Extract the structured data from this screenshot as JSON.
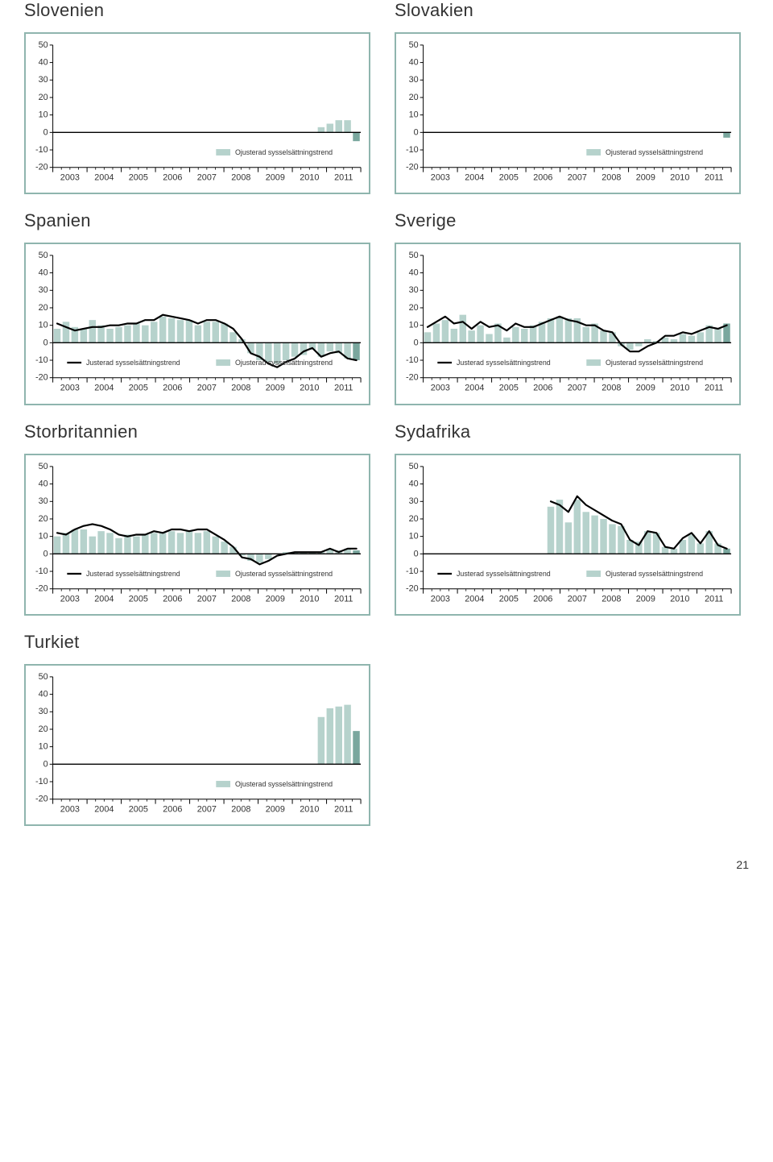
{
  "page_number": "21",
  "ylim": [
    -20,
    50
  ],
  "yticks": [
    -20,
    -10,
    0,
    10,
    20,
    30,
    40,
    50
  ],
  "xlabels": [
    "2003",
    "2004",
    "2005",
    "2006",
    "2007",
    "2008",
    "2009",
    "2010",
    "2011"
  ],
  "legend": {
    "adjusted": "Justerad sysselsättningstrend",
    "unadjusted": "Ojusterad sysselsättningstrend"
  },
  "colors": {
    "bar": "#b6d2cc",
    "bar_last": "#7aa79e",
    "line": "#000000",
    "frame": "#8fb5ae",
    "axis": "#000000",
    "tick": "#000000",
    "text": "#333333",
    "bg": "#ffffff",
    "legend_box": "#b6d2cc",
    "line_width": 2.2,
    "tick_font": 11,
    "legend_font": 9
  },
  "charts": [
    {
      "id": "slovenien",
      "title": "Slovenien",
      "has_line": false,
      "bars": [
        null,
        null,
        null,
        null,
        null,
        null,
        null,
        null,
        null,
        null,
        null,
        null,
        null,
        null,
        null,
        null,
        null,
        null,
        null,
        null,
        null,
        null,
        null,
        null,
        null,
        null,
        null,
        null,
        null,
        null,
        3,
        5,
        7,
        7,
        -5
      ]
    },
    {
      "id": "slovakien",
      "title": "Slovakien",
      "has_line": false,
      "bars": [
        null,
        null,
        null,
        null,
        null,
        null,
        null,
        null,
        null,
        null,
        null,
        null,
        null,
        null,
        null,
        null,
        null,
        null,
        null,
        null,
        null,
        null,
        null,
        null,
        null,
        null,
        null,
        null,
        null,
        null,
        null,
        null,
        null,
        null,
        -3
      ]
    },
    {
      "id": "spanien",
      "title": "Spanien",
      "has_line": true,
      "bars": [
        8,
        12,
        9,
        8,
        13,
        10,
        8,
        9,
        10,
        11,
        10,
        12,
        15,
        14,
        13,
        13,
        10,
        12,
        12,
        11,
        6,
        2,
        -6,
        -10,
        -11,
        -12,
        -10,
        -8,
        -7,
        -4,
        -8,
        -5,
        -6,
        -9,
        -10
      ],
      "line": [
        11,
        9,
        7,
        8,
        9,
        9,
        10,
        10,
        11,
        11,
        13,
        13,
        16,
        15,
        14,
        13,
        11,
        13,
        13,
        11,
        8,
        2,
        -6,
        -8,
        -12,
        -14,
        -11,
        -9,
        -5,
        -3,
        -8,
        -6,
        -5,
        -9,
        -10
      ]
    },
    {
      "id": "sverige",
      "title": "Sverige",
      "has_line": true,
      "bars": [
        6,
        11,
        13,
        8,
        16,
        7,
        10,
        5,
        11,
        3,
        9,
        8,
        10,
        12,
        14,
        15,
        14,
        14,
        9,
        11,
        7,
        6,
        -2,
        -4,
        -2,
        2,
        1,
        3,
        2,
        5,
        4,
        6,
        10,
        8,
        11
      ],
      "line": [
        9,
        12,
        15,
        11,
        12,
        8,
        12,
        9,
        10,
        7,
        11,
        9,
        9,
        11,
        13,
        15,
        13,
        12,
        10,
        10,
        7,
        6,
        -1,
        -5,
        -5,
        -2,
        0,
        4,
        4,
        6,
        5,
        7,
        9,
        8,
        10
      ]
    },
    {
      "id": "storbritannien",
      "title": "Storbritannien",
      "has_line": true,
      "bars": [
        10,
        12,
        14,
        14,
        10,
        13,
        12,
        9,
        11,
        10,
        11,
        12,
        12,
        13,
        12,
        13,
        12,
        13,
        10,
        7,
        4,
        -1,
        -4,
        -5,
        -3,
        0,
        1,
        1,
        1,
        1,
        1,
        3,
        2,
        3,
        2
      ],
      "line": [
        12,
        11,
        14,
        16,
        17,
        16,
        14,
        11,
        10,
        11,
        11,
        13,
        12,
        14,
        14,
        13,
        14,
        14,
        11,
        8,
        4,
        -2,
        -3,
        -6,
        -4,
        -1,
        0,
        1,
        1,
        1,
        1,
        3,
        1,
        3,
        3
      ]
    },
    {
      "id": "sydafrika",
      "title": "Sydafrika",
      "has_line": true,
      "bars": [
        null,
        null,
        null,
        null,
        null,
        null,
        null,
        null,
        null,
        null,
        null,
        null,
        null,
        null,
        27,
        31,
        18,
        31,
        24,
        22,
        20,
        17,
        16,
        8,
        7,
        13,
        12,
        4,
        3,
        8,
        11,
        6,
        13,
        6,
        3
      ],
      "line": [
        null,
        null,
        null,
        null,
        null,
        null,
        null,
        null,
        null,
        null,
        null,
        null,
        null,
        null,
        30,
        28,
        24,
        33,
        28,
        25,
        22,
        19,
        17,
        8,
        5,
        13,
        12,
        4,
        3,
        9,
        12,
        6,
        13,
        5,
        3
      ]
    },
    {
      "id": "turkiet",
      "title": "Turkiet",
      "has_line": false,
      "bars": [
        null,
        null,
        null,
        null,
        null,
        null,
        null,
        null,
        null,
        null,
        null,
        null,
        null,
        null,
        null,
        null,
        null,
        null,
        null,
        null,
        null,
        null,
        null,
        null,
        null,
        null,
        null,
        null,
        null,
        null,
        27,
        32,
        33,
        34,
        19
      ]
    }
  ]
}
